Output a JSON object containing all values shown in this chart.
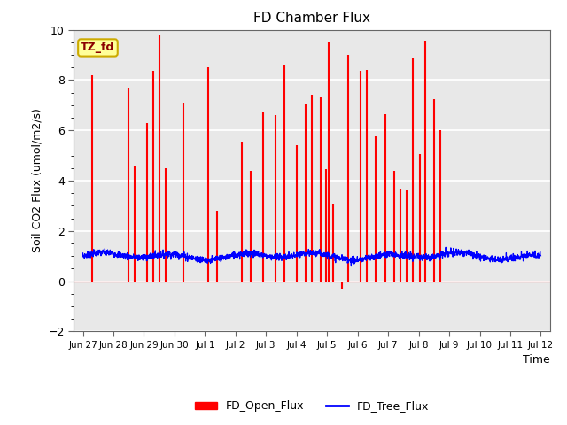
{
  "title": "FD Chamber Flux",
  "ylabel": "Soil CO2 Flux (umol/m2/s)",
  "xlabel": "Time",
  "ylim": [
    -2,
    10
  ],
  "yticks": [
    -2,
    0,
    2,
    4,
    6,
    8,
    10
  ],
  "xtick_labels": [
    "Jun 27",
    "Jun 28",
    "Jun 29",
    "Jun 30",
    "Jul 1",
    "Jul 2",
    "Jul 3",
    "Jul 4",
    "Jul 5",
    "Jul 6",
    "Jul 7",
    "Jul 8",
    "Jul 9",
    "Jul 10",
    "Jul 11",
    "Jul 12"
  ],
  "annotation_text": "TZ_fd",
  "annotation_color": "#8B0000",
  "annotation_bg": "#FFFF99",
  "annotation_border": "#CCAA00",
  "plot_bg_color": "#E8E8E8",
  "fig_bg_color": "#FFFFFF",
  "red_series_color": "red",
  "blue_series_color": "blue",
  "legend_entries": [
    "FD_Open_Flux",
    "FD_Tree_Flux"
  ],
  "red_peaks": [
    {
      "day": 0.3,
      "val": 8.2
    },
    {
      "day": 1.5,
      "val": 7.7
    },
    {
      "day": 1.7,
      "val": 4.6
    },
    {
      "day": 2.1,
      "val": 6.3
    },
    {
      "day": 2.3,
      "val": 8.35
    },
    {
      "day": 2.5,
      "val": 9.8
    },
    {
      "day": 2.7,
      "val": 4.5
    },
    {
      "day": 3.3,
      "val": 7.1
    },
    {
      "day": 4.1,
      "val": 8.5
    },
    {
      "day": 4.4,
      "val": 2.8
    },
    {
      "day": 5.2,
      "val": 5.55
    },
    {
      "day": 5.5,
      "val": 4.4
    },
    {
      "day": 5.9,
      "val": 6.7
    },
    {
      "day": 6.3,
      "val": 6.6
    },
    {
      "day": 6.6,
      "val": 8.6
    },
    {
      "day": 7.0,
      "val": 5.4
    },
    {
      "day": 7.3,
      "val": 7.05
    },
    {
      "day": 7.5,
      "val": 7.4
    },
    {
      "day": 7.8,
      "val": 7.35
    },
    {
      "day": 7.95,
      "val": 4.45
    },
    {
      "day": 8.05,
      "val": 9.5
    },
    {
      "day": 8.2,
      "val": 3.1
    },
    {
      "day": 8.5,
      "val": -0.3
    },
    {
      "day": 8.7,
      "val": 9.0
    },
    {
      "day": 9.1,
      "val": 8.35
    },
    {
      "day": 9.3,
      "val": 8.4
    },
    {
      "day": 9.6,
      "val": 5.75
    },
    {
      "day": 9.9,
      "val": 6.65
    },
    {
      "day": 10.2,
      "val": 4.4
    },
    {
      "day": 10.4,
      "val": 3.7
    },
    {
      "day": 10.6,
      "val": 3.6
    },
    {
      "day": 10.8,
      "val": 8.9
    },
    {
      "day": 11.05,
      "val": 5.05
    },
    {
      "day": 11.2,
      "val": 9.55
    },
    {
      "day": 11.5,
      "val": 7.25
    },
    {
      "day": 11.7,
      "val": 6.0
    }
  ]
}
